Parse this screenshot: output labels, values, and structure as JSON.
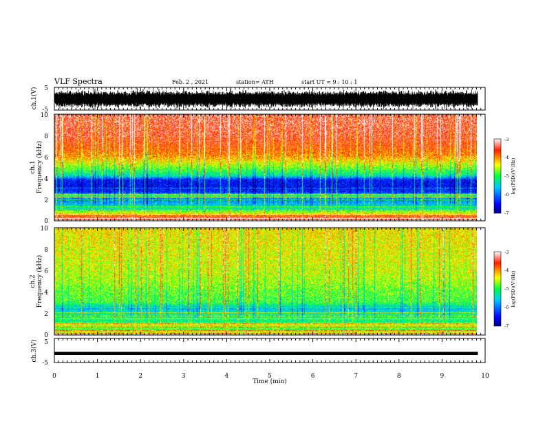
{
  "header": {
    "title": "VLF Spectra",
    "date": "Feb. 2 , 2021",
    "station": "station= ATH",
    "start": "start UT = 9 : 10 : 1"
  },
  "chart_data": [
    {
      "type": "line",
      "name": "ch1-waveform",
      "ylabel": "ch.1(V)",
      "ylim": [
        -5,
        5
      ],
      "yticks": [
        "5",
        "-5"
      ],
      "xlim": [
        0,
        10
      ],
      "note_values": "dense random signal spanning approx -4.5 to 4.5 V"
    },
    {
      "type": "heatmap",
      "name": "ch1-spectrogram",
      "ylabel": "ch.1\nFrequency (kHz)",
      "ylabel_lines": [
        "ch.1",
        "Frequency (kHz)"
      ],
      "ylim": [
        0,
        10
      ],
      "yticks": [
        "0",
        "2",
        "4",
        "6",
        "8",
        "10"
      ],
      "xlim": [
        0,
        9.83
      ],
      "colorbar": {
        "label": "log(PSD)(V²/Hz)",
        "ticks": [
          "-3",
          "-4",
          "-5",
          "-6",
          "-7"
        ],
        "range": [
          -7,
          -3
        ]
      },
      "profile_kHz": [
        [
          0.0,
          -3.5
        ],
        [
          0.3,
          -3.6
        ],
        [
          0.6,
          -4.3
        ],
        [
          1.0,
          -5.2
        ],
        [
          1.5,
          -5.6
        ],
        [
          2.0,
          -5.9
        ],
        [
          2.3,
          -5.0
        ],
        [
          2.6,
          -6.3
        ],
        [
          3.2,
          -6.5
        ],
        [
          3.8,
          -6.4
        ],
        [
          4.2,
          -5.3
        ],
        [
          5.0,
          -4.7
        ],
        [
          6.0,
          -4.0
        ],
        [
          7.0,
          -3.7
        ],
        [
          8.0,
          -3.5
        ],
        [
          10.0,
          -3.4
        ]
      ]
    },
    {
      "type": "heatmap",
      "name": "ch2-spectrogram",
      "ylabel": "ch.2\nFrequency (kHz)",
      "ylabel_lines": [
        "ch.2",
        "Frequency (kHz)"
      ],
      "ylim": [
        0,
        10
      ],
      "yticks": [
        "0",
        "2",
        "4",
        "6",
        "8",
        "10"
      ],
      "xlim": [
        0,
        9.83
      ],
      "colorbar": {
        "label": "log(PSD)(V²/Hz)",
        "ticks": [
          "-3",
          "-4",
          "-5",
          "-6",
          "-7"
        ],
        "range": [
          -7,
          -3
        ]
      },
      "profile_kHz": [
        [
          0.0,
          -4.0
        ],
        [
          0.4,
          -5.0
        ],
        [
          0.8,
          -4.4
        ],
        [
          1.2,
          -5.2
        ],
        [
          1.6,
          -5.0
        ],
        [
          2.0,
          -5.3
        ],
        [
          2.4,
          -5.6
        ],
        [
          3.0,
          -4.9
        ],
        [
          4.0,
          -4.8
        ],
        [
          5.0,
          -4.6
        ],
        [
          6.0,
          -4.5
        ],
        [
          8.0,
          -4.4
        ],
        [
          10.0,
          -4.3
        ]
      ]
    },
    {
      "type": "line",
      "name": "ch3-waveform",
      "ylabel": "ch.3(V)",
      "ylim": [
        -5,
        5
      ],
      "yticks": [
        "5",
        "0",
        "-5"
      ],
      "xlim": [
        0,
        10
      ],
      "level_V": -1.2
    }
  ],
  "x_axis": {
    "label": "Time (min)",
    "ticks": [
      "0",
      "1",
      "2",
      "3",
      "4",
      "5",
      "6",
      "7",
      "8",
      "9",
      "10"
    ],
    "range": [
      0,
      10
    ]
  }
}
